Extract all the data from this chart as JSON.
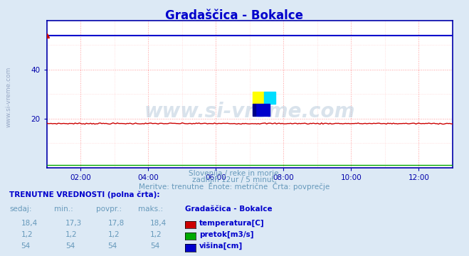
{
  "title": "Gradaščica - Bokalce",
  "bg_color": "#dce9f5",
  "plot_bg_color": "#ffffff",
  "title_color": "#0000cc",
  "grid_color_major": "#ff9999",
  "grid_color_minor": "#ffcccc",
  "axis_color": "#0000aa",
  "text_color": "#6699bb",
  "watermark": "www.si-vreme.com",
  "watermark_color": "#aabbcc",
  "subtitle1": "Slovenija / reke in morje.",
  "subtitle2": "zadnjih 12ur / 5 minut.",
  "subtitle3": "Meritve: trenutne  Enote: metrične  Črta: povprečje",
  "table_header": "TRENUTNE VREDNOSTI (polna črta):",
  "col_headers": [
    "sedaj:",
    "min.:",
    "povpr.:",
    "maks.:",
    "Gradaščica - Bokalce"
  ],
  "row_temp": [
    "18,4",
    "17,3",
    "17,8",
    "18,4"
  ],
  "row_pretok": [
    "1,2",
    "1,2",
    "1,2",
    "1,2"
  ],
  "row_visina": [
    "54",
    "54",
    "54",
    "54"
  ],
  "legend_labels": [
    "temperatura[C]",
    "pretok[m3/s]",
    "višina[cm]"
  ],
  "legend_colors": [
    "#cc0000",
    "#00aa00",
    "#0000cc"
  ],
  "xmin": 0,
  "xmax": 144,
  "ymin": 0,
  "ymax": 60,
  "ytick_labels": [
    "20",
    "40"
  ],
  "ytick_positions": [
    20,
    40
  ],
  "xtick_labels": [
    "02:00",
    "04:00",
    "06:00",
    "08:00",
    "10:00",
    "12:00"
  ],
  "xtick_positions": [
    12,
    36,
    60,
    84,
    108,
    132
  ],
  "temp_color": "#cc0000",
  "pretok_color": "#00aa00",
  "visina_color": "#0000cc",
  "line_temp_y": 18.0,
  "line_pretok_y": 1.2,
  "line_visina_y": 54.0,
  "side_text": "www.si-vreme.com",
  "side_text_color": "#8899bb"
}
